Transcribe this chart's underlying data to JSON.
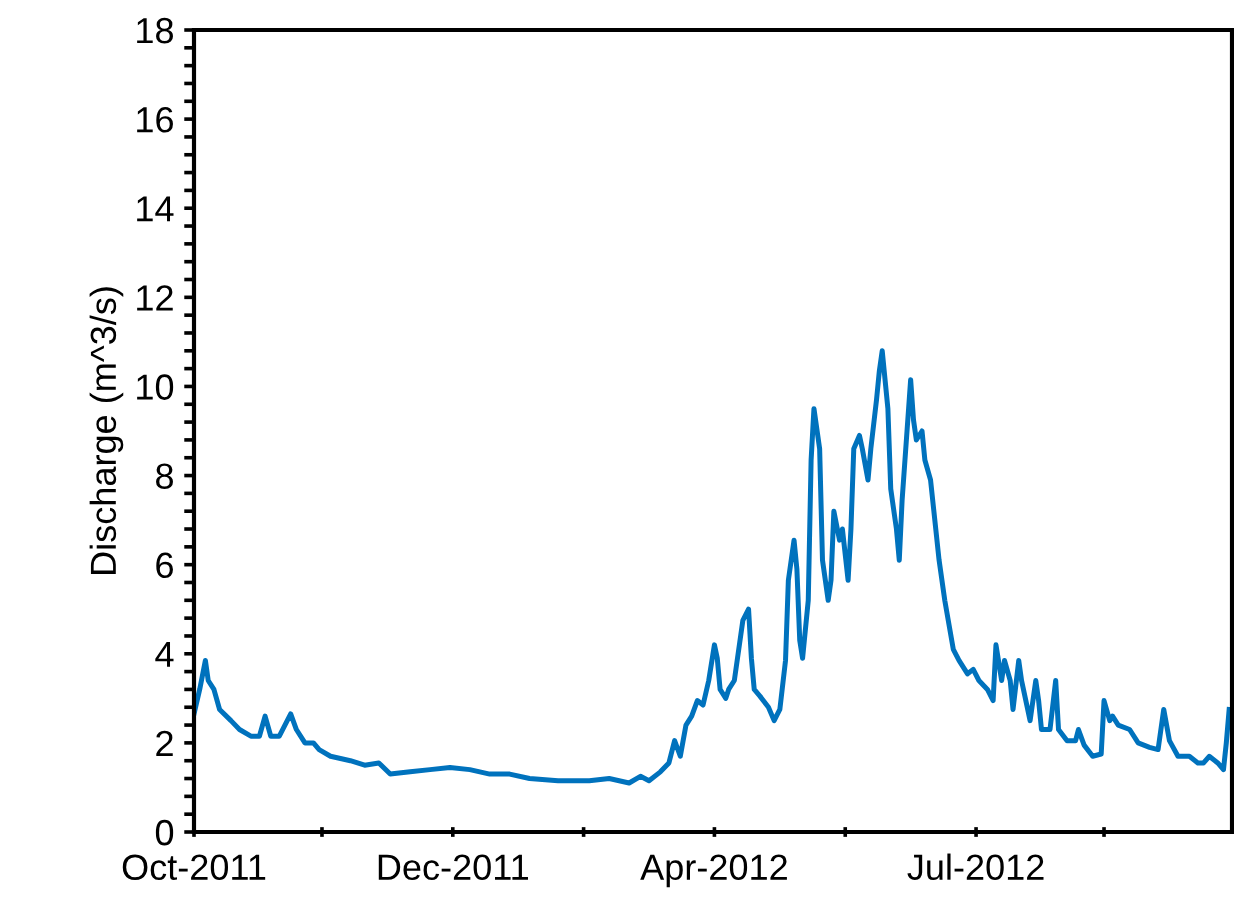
{
  "chart_data": {
    "type": "line",
    "ylabel": "Discharge (m^3/s)",
    "x": [
      "2011-10-01",
      "2011-10-03",
      "2011-10-05",
      "2011-10-06",
      "2011-10-08",
      "2011-10-10",
      "2011-10-14",
      "2011-10-17",
      "2011-10-21",
      "2011-10-24",
      "2011-10-26",
      "2011-10-28",
      "2011-10-31",
      "2011-11-04",
      "2011-11-06",
      "2011-11-09",
      "2011-11-12",
      "2011-11-14",
      "2011-11-18",
      "2011-11-25",
      "2011-11-30",
      "2011-12-05",
      "2011-12-09",
      "2011-12-16",
      "2011-12-23",
      "2011-12-30",
      "2012-01-06",
      "2012-01-13",
      "2012-01-20",
      "2012-01-27",
      "2012-02-06",
      "2012-02-17",
      "2012-02-24",
      "2012-03-02",
      "2012-03-06",
      "2012-03-09",
      "2012-03-13",
      "2012-03-16",
      "2012-03-18",
      "2012-03-20",
      "2012-03-22",
      "2012-03-24",
      "2012-03-26",
      "2012-03-28",
      "2012-03-30",
      "2012-04-01",
      "2012-04-02",
      "2012-04-03",
      "2012-04-05",
      "2012-04-06",
      "2012-04-08",
      "2012-04-11",
      "2012-04-13",
      "2012-04-14",
      "2012-04-15",
      "2012-04-17",
      "2012-04-20",
      "2012-04-22",
      "2012-04-24",
      "2012-04-26",
      "2012-04-27",
      "2012-04-29",
      "2012-04-30",
      "2012-05-01",
      "2012-05-02",
      "2012-05-04",
      "2012-05-05",
      "2012-05-06",
      "2012-05-08",
      "2012-05-09",
      "2012-05-11",
      "2012-05-12",
      "2012-05-13",
      "2012-05-15",
      "2012-05-16",
      "2012-05-18",
      "2012-05-19",
      "2012-05-20",
      "2012-05-22",
      "2012-05-23",
      "2012-05-25",
      "2012-05-26",
      "2012-05-28",
      "2012-05-29",
      "2012-05-30",
      "2012-06-01",
      "2012-06-02",
      "2012-06-04",
      "2012-06-05",
      "2012-06-06",
      "2012-06-08",
      "2012-06-09",
      "2012-06-10",
      "2012-06-11",
      "2012-06-13",
      "2012-06-14",
      "2012-06-16",
      "2012-06-19",
      "2012-06-21",
      "2012-06-24",
      "2012-06-26",
      "2012-06-29",
      "2012-07-01",
      "2012-07-03",
      "2012-07-06",
      "2012-07-08",
      "2012-07-09",
      "2012-07-11",
      "2012-07-12",
      "2012-07-14",
      "2012-07-15",
      "2012-07-17",
      "2012-07-18",
      "2012-07-21",
      "2012-07-23",
      "2012-07-24",
      "2012-07-25",
      "2012-07-28",
      "2012-07-30",
      "2012-07-31",
      "2012-08-03",
      "2012-08-06",
      "2012-08-07",
      "2012-08-09",
      "2012-08-12",
      "2012-08-15",
      "2012-08-16",
      "2012-08-18",
      "2012-08-19",
      "2012-08-21",
      "2012-08-25",
      "2012-08-28",
      "2012-09-01",
      "2012-09-04",
      "2012-09-06",
      "2012-09-08",
      "2012-09-11",
      "2012-09-15",
      "2012-09-18",
      "2012-09-20",
      "2012-09-22",
      "2012-09-25",
      "2012-09-27",
      "2012-09-28",
      "2012-09-29"
    ],
    "series": [
      {
        "color": "#0072bd",
        "values": [
          2.65,
          3.2,
          3.85,
          3.4,
          3.2,
          2.75,
          2.5,
          2.3,
          2.15,
          2.15,
          2.6,
          2.15,
          2.15,
          2.65,
          2.3,
          2.0,
          2.0,
          1.85,
          1.7,
          1.6,
          1.5,
          1.55,
          1.3,
          1.35,
          1.4,
          1.45,
          1.4,
          1.3,
          1.3,
          1.2,
          1.15,
          1.15,
          1.2,
          1.1,
          1.25,
          1.15,
          1.35,
          1.55,
          2.05,
          1.7,
          2.4,
          2.6,
          2.95,
          2.85,
          3.4,
          4.2,
          3.9,
          3.2,
          3.0,
          3.2,
          3.4,
          4.75,
          5.0,
          3.9,
          3.2,
          3.05,
          2.8,
          2.5,
          2.75,
          3.85,
          5.65,
          6.55,
          5.9,
          4.3,
          3.9,
          5.2,
          8.35,
          9.5,
          8.6,
          6.1,
          5.2,
          5.65,
          7.2,
          6.55,
          6.8,
          5.65,
          6.8,
          8.6,
          8.9,
          8.6,
          7.9,
          8.6,
          9.7,
          10.35,
          10.8,
          9.5,
          7.7,
          6.8,
          6.1,
          7.45,
          9.25,
          10.15,
          9.25,
          8.8,
          9.0,
          8.35,
          7.9,
          6.1,
          5.2,
          4.1,
          3.85,
          3.55,
          3.65,
          3.4,
          3.2,
          2.95,
          4.2,
          3.4,
          3.85,
          3.4,
          2.75,
          3.85,
          3.4,
          2.5,
          3.4,
          2.95,
          2.3,
          2.3,
          3.4,
          2.3,
          2.05,
          2.05,
          2.3,
          1.95,
          1.7,
          1.75,
          2.95,
          2.5,
          2.6,
          2.4,
          2.3,
          2.0,
          1.9,
          1.85,
          2.75,
          2.05,
          1.7,
          1.7,
          1.55,
          1.55,
          1.7,
          1.55,
          1.4,
          2.0,
          2.75
        ]
      }
    ],
    "xlim": [
      "2011-10-01",
      "2012-09-30"
    ],
    "xticks": [
      {
        "value": "2011-10-01",
        "label": "Oct-2011"
      },
      {
        "value": "2011-11-15",
        "label": null
      },
      {
        "value": "2011-12-31",
        "label": "Dec-2011"
      },
      {
        "value": "2012-02-15",
        "label": null
      },
      {
        "value": "2012-04-01",
        "label": "Apr-2012"
      },
      {
        "value": "2012-05-17",
        "label": null
      },
      {
        "value": "2012-07-02",
        "label": "Jul-2012"
      },
      {
        "value": "2012-08-16",
        "label": null
      }
    ],
    "ylim": [
      0,
      18
    ],
    "yticks": [
      0,
      {
        "value": 0.4,
        "label": null
      },
      {
        "value": 0.8,
        "label": null
      },
      {
        "value": 1.2,
        "label": null
      },
      {
        "value": 1.6,
        "label": null
      },
      2,
      {
        "value": 2.4,
        "label": null
      },
      {
        "value": 2.8,
        "label": null
      },
      {
        "value": 3.2,
        "label": null
      },
      {
        "value": 3.6,
        "label": null
      },
      4,
      {
        "value": 4.4,
        "label": null
      },
      {
        "value": 4.8,
        "label": null
      },
      {
        "value": 5.2,
        "label": null
      },
      {
        "value": 5.6,
        "label": null
      },
      6,
      {
        "value": 6.4,
        "label": null
      },
      {
        "value": 6.8,
        "label": null
      },
      {
        "value": 7.2,
        "label": null
      },
      {
        "value": 7.6,
        "label": null
      },
      8,
      {
        "value": 8.4,
        "label": null
      },
      {
        "value": 8.8,
        "label": null
      },
      {
        "value": 9.2,
        "label": null
      },
      {
        "value": 9.6,
        "label": null
      },
      10,
      {
        "value": 10.4,
        "label": null
      },
      {
        "value": 10.8,
        "label": null
      },
      {
        "value": 11.2,
        "label": null
      },
      {
        "value": 11.6,
        "label": null
      },
      12,
      {
        "value": 12.4,
        "label": null
      },
      {
        "value": 12.8,
        "label": null
      },
      {
        "value": 13.2,
        "label": null
      },
      {
        "value": 13.6,
        "label": null
      },
      14,
      {
        "value": 14.4,
        "label": null
      },
      {
        "value": 14.8,
        "label": null
      },
      {
        "value": 15.2,
        "label": null
      },
      {
        "value": 15.6,
        "label": null
      },
      16,
      {
        "value": 16.4,
        "label": null
      },
      {
        "value": 16.8,
        "label": null
      },
      {
        "value": 17.2,
        "label": null
      },
      {
        "value": 17.6,
        "label": null
      },
      18
    ],
    "grid": false,
    "legend": false,
    "marker": "none",
    "line_style": "solid"
  }
}
